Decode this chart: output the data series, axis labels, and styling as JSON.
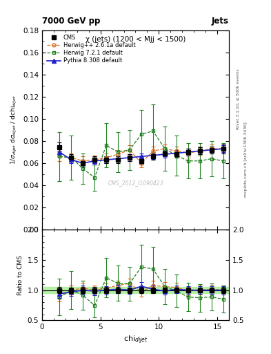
{
  "title_main": "7000 GeV pp",
  "title_right": "Jets",
  "subtitle": "χ (jets) (1200 < Mjj < 1500)",
  "watermark": "CMS_2012_I1090423",
  "ylabel_main": "1/σ_{dijet} dσ_{dijet} / dchi_{dijet}",
  "ylabel_ratio": "Ratio to CMS",
  "right_label": "Rivet 3.1.10, ≥ 500k events",
  "right_label2": "mcplots.cern.ch [arXiv:1306.3436]",
  "ylim_main": [
    0.0,
    0.18
  ],
  "ylim_ratio": [
    0.5,
    2.0
  ],
  "xlim": [
    1,
    16
  ],
  "cms_x": [
    1.5,
    2.5,
    3.5,
    4.5,
    5.5,
    6.5,
    7.5,
    8.5,
    9.5,
    10.5,
    11.5,
    12.5,
    13.5,
    14.5,
    15.5
  ],
  "cms_y": [
    0.0745,
    0.065,
    0.06,
    0.063,
    0.063,
    0.063,
    0.065,
    0.062,
    0.066,
    0.069,
    0.068,
    0.07,
    0.071,
    0.072,
    0.073
  ],
  "cms_yerr": [
    0.004,
    0.003,
    0.003,
    0.003,
    0.003,
    0.003,
    0.003,
    0.003,
    0.003,
    0.003,
    0.003,
    0.003,
    0.003,
    0.003,
    0.004
  ],
  "herwig_x": [
    1.5,
    2.5,
    3.5,
    4.5,
    5.5,
    6.5,
    7.5,
    8.5,
    9.5,
    10.5,
    11.5,
    12.5,
    13.5,
    14.5,
    15.5
  ],
  "herwig_y": [
    0.066,
    0.065,
    0.062,
    0.063,
    0.065,
    0.068,
    0.072,
    0.06,
    0.071,
    0.073,
    0.071,
    0.069,
    0.071,
    0.073,
    0.073
  ],
  "herwig_yerr": [
    0.004,
    0.004,
    0.004,
    0.004,
    0.004,
    0.004,
    0.004,
    0.004,
    0.004,
    0.004,
    0.004,
    0.004,
    0.004,
    0.004,
    0.004
  ],
  "herwig72_x": [
    1.5,
    2.5,
    3.5,
    4.5,
    5.5,
    6.5,
    7.5,
    8.5,
    9.5,
    10.5,
    11.5,
    12.5,
    13.5,
    14.5,
    15.5
  ],
  "herwig72_y": [
    0.066,
    0.065,
    0.055,
    0.047,
    0.076,
    0.07,
    0.072,
    0.086,
    0.089,
    0.073,
    0.067,
    0.062,
    0.062,
    0.064,
    0.062
  ],
  "herwig72_yerr": [
    0.022,
    0.02,
    0.014,
    0.012,
    0.02,
    0.018,
    0.018,
    0.022,
    0.024,
    0.02,
    0.018,
    0.016,
    0.016,
    0.016,
    0.016
  ],
  "pythia_x": [
    1.5,
    2.5,
    3.5,
    4.5,
    5.5,
    6.5,
    7.5,
    8.5,
    9.5,
    10.5,
    11.5,
    12.5,
    13.5,
    14.5,
    15.5
  ],
  "pythia_y": [
    0.07,
    0.063,
    0.06,
    0.062,
    0.063,
    0.064,
    0.065,
    0.066,
    0.067,
    0.068,
    0.069,
    0.07,
    0.071,
    0.072,
    0.073
  ],
  "pythia_yerr": [
    0.003,
    0.003,
    0.003,
    0.003,
    0.003,
    0.003,
    0.003,
    0.003,
    0.003,
    0.003,
    0.003,
    0.003,
    0.003,
    0.003,
    0.003
  ],
  "cms_color": "#000000",
  "herwig_color": "#e07020",
  "herwig72_color": "#208020",
  "pythia_color": "#2020cc",
  "cms_band_color": "#aaee99",
  "background_color": "#ffffff",
  "yticks_main": [
    0.0,
    0.02,
    0.04,
    0.06,
    0.08,
    0.1,
    0.12,
    0.14,
    0.16,
    0.18
  ],
  "yticks_ratio": [
    0.5,
    1.0,
    1.5,
    2.0
  ]
}
